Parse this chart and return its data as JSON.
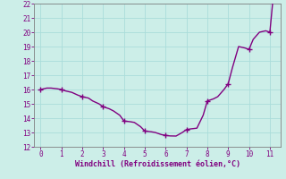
{
  "x": [
    0,
    0.3,
    0.5,
    0.8,
    1.0,
    1.2,
    1.5,
    1.8,
    2.0,
    2.3,
    2.5,
    2.8,
    3.0,
    3.3,
    3.5,
    3.8,
    4.0,
    4.3,
    4.5,
    4.8,
    5.0,
    5.3,
    5.5,
    5.8,
    6.0,
    6.2,
    6.5,
    6.8,
    7.0,
    7.2,
    7.5,
    7.8,
    8.0,
    8.3,
    8.5,
    8.8,
    9.0,
    9.2,
    9.5,
    9.8,
    10.0,
    10.2,
    10.5,
    10.8,
    11.0,
    11.15
  ],
  "y": [
    16.0,
    16.1,
    16.1,
    16.05,
    16.0,
    15.9,
    15.8,
    15.6,
    15.5,
    15.4,
    15.2,
    15.0,
    14.8,
    14.65,
    14.5,
    14.2,
    13.8,
    13.75,
    13.7,
    13.4,
    13.1,
    13.05,
    13.0,
    12.85,
    12.8,
    12.76,
    12.75,
    13.0,
    13.2,
    13.25,
    13.3,
    14.2,
    15.2,
    15.35,
    15.5,
    16.0,
    16.4,
    17.5,
    19.0,
    18.9,
    18.8,
    19.5,
    20.0,
    20.1,
    20.0,
    22.3
  ],
  "markers_x": [
    0,
    1,
    2,
    3,
    4,
    5,
    6,
    7,
    8,
    9,
    10,
    11
  ],
  "markers_y": [
    16.0,
    16.0,
    15.5,
    14.8,
    13.8,
    13.1,
    12.8,
    13.2,
    15.2,
    16.4,
    18.8,
    20.0
  ],
  "line_color": "#800080",
  "marker_color": "#800080",
  "bg_color": "#cceee8",
  "grid_color": "#aaddda",
  "xlabel": "Windchill (Refroidissement éolien,°C)",
  "xlabel_color": "#800080",
  "tick_color": "#800080",
  "spine_color": "#808080",
  "xlim": [
    -0.3,
    11.5
  ],
  "ylim": [
    12,
    22
  ],
  "xticks": [
    0,
    1,
    2,
    3,
    4,
    5,
    6,
    7,
    8,
    9,
    10,
    11
  ],
  "yticks": [
    12,
    13,
    14,
    15,
    16,
    17,
    18,
    19,
    20,
    21,
    22
  ],
  "marker_size": 5,
  "line_width": 1.0,
  "tick_labelsize": 5.5,
  "xlabel_fontsize": 6.0
}
